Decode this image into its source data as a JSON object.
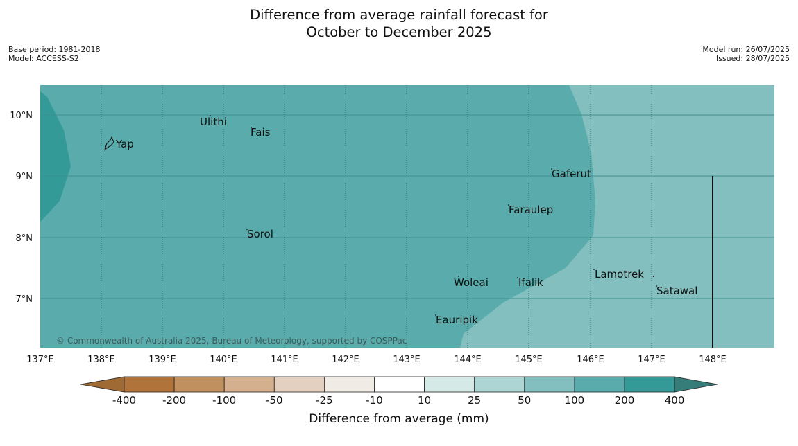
{
  "title_line1": "Difference from average rainfall forecast for",
  "title_line2": "October to December 2025",
  "base_period": "Base period: 1981-2018",
  "model": "Model: ACCESS-S2",
  "model_run": "Model run: 26/07/2025",
  "issued": "Issued: 28/07/2025",
  "copyright": "© Commonwealth of Australia 2025, Bureau of Meteorology, supported by COSPPac",
  "colors": {
    "over_200": "#339a98",
    "100_200": "#5aabab",
    "50_100": "#83bfbe",
    "land_outline": "#111111"
  },
  "lon_ticks": [
    "137°E",
    "138°E",
    "139°E",
    "140°E",
    "141°E",
    "142°E",
    "143°E",
    "144°E",
    "145°E",
    "146°E",
    "147°E",
    "148°E"
  ],
  "lat_ticks": [
    "10°N",
    "9°N",
    "8°N",
    "7°N"
  ],
  "places": {
    "yap": "Yap",
    "ulithi": "Ulithi",
    "fais": "Fais",
    "gaferut": "Gaferut",
    "faraulep": "Faraulep",
    "sorol": "Sorol",
    "woleai": "Woleai",
    "ifalik": "Ifalik",
    "lamotrek": "Lamotrek",
    "satawal": "Satawal",
    "eauripik": "Eauripik"
  },
  "colorbar": {
    "title": "Difference from average (mm)",
    "ticks": [
      "-400",
      "-200",
      "-100",
      "-50",
      "-25",
      "-10",
      "10",
      "25",
      "50",
      "100",
      "200",
      "400"
    ],
    "colors": [
      "#b0733a",
      "#c0915f",
      "#d4b08f",
      "#e4d0c0",
      "#f0ebe4",
      "#ffffff",
      "#d5e9e7",
      "#acd5d3",
      "#83bfbe",
      "#5aabab",
      "#339a98"
    ],
    "under_color": "#a06a34",
    "over_color": "#367c78"
  }
}
